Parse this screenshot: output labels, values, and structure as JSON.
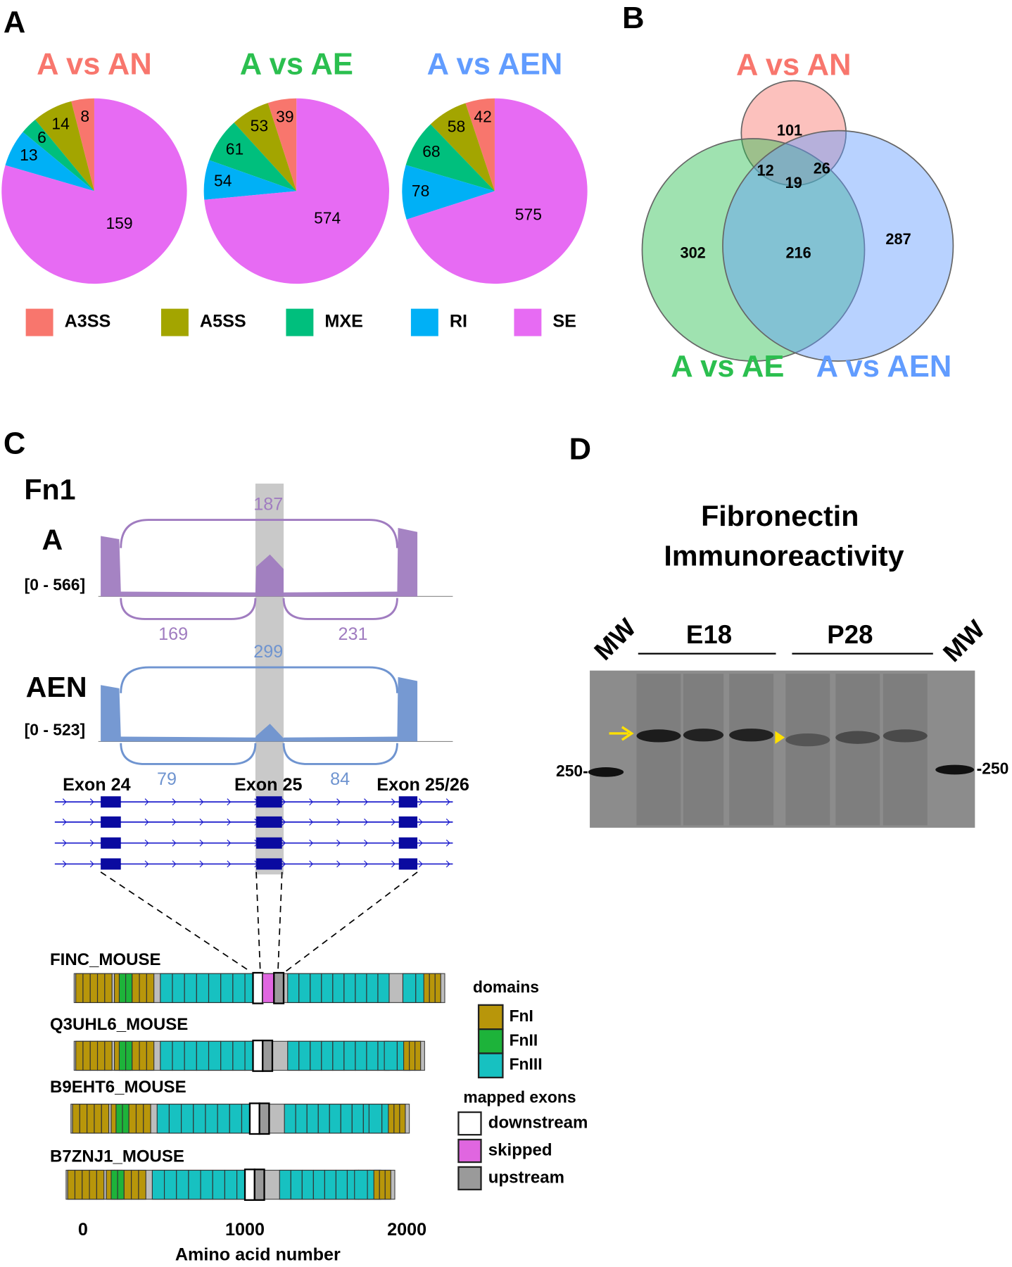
{
  "panels": [
    "A",
    "B",
    "C",
    "D"
  ],
  "chart_data": [
    {
      "type": "pie",
      "title": "A vs AN",
      "title_color": "#f8766d",
      "categories": [
        "A3SS",
        "A5SS",
        "MXE",
        "RI",
        "SE"
      ],
      "colors": [
        "#f8766d",
        "#a3a500",
        "#00bf7d",
        "#00b0f6",
        "#e76bf3"
      ],
      "values": [
        8,
        14,
        6,
        13,
        159
      ]
    },
    {
      "type": "pie",
      "title": "A vs AE",
      "title_color": "#2bbf4f",
      "categories": [
        "A3SS",
        "A5SS",
        "MXE",
        "RI",
        "SE"
      ],
      "colors": [
        "#f8766d",
        "#a3a500",
        "#00bf7d",
        "#00b0f6",
        "#e76bf3"
      ],
      "values": [
        39,
        53,
        61,
        54,
        574
      ]
    },
    {
      "type": "pie",
      "title": "A vs AEN",
      "title_color": "#619cff",
      "categories": [
        "A3SS",
        "A5SS",
        "MXE",
        "RI",
        "SE"
      ],
      "colors": [
        "#f8766d",
        "#a3a500",
        "#00bf7d",
        "#00b0f6",
        "#e76bf3"
      ],
      "values": [
        42,
        58,
        68,
        78,
        575
      ]
    },
    {
      "type": "venn",
      "sets": [
        {
          "name": "A vs AN",
          "color": "#f8766d"
        },
        {
          "name": "A vs AE",
          "color": "#2bbf4f"
        },
        {
          "name": "A vs AEN",
          "color": "#619cff"
        }
      ],
      "regions": [
        {
          "sets": [
            0
          ],
          "value": 101
        },
        {
          "sets": [
            0,
            1
          ],
          "value": 12
        },
        {
          "sets": [
            0,
            2
          ],
          "value": 26
        },
        {
          "sets": [
            0,
            1,
            2
          ],
          "value": 19
        },
        {
          "sets": [
            1
          ],
          "value": 302
        },
        {
          "sets": [
            1,
            2
          ],
          "value": 216
        },
        {
          "sets": [
            2
          ],
          "value": 287
        }
      ]
    }
  ],
  "sashimi": {
    "gene": "Fn1",
    "tracks": [
      {
        "name": "A",
        "range": "[0 - 566]",
        "color": "#a07cc0",
        "junctions": [
          187,
          169,
          231
        ]
      },
      {
        "name": "AEN",
        "range": "[0 - 523]",
        "color": "#6f94d0",
        "junctions": [
          299,
          79,
          84
        ]
      }
    ],
    "exons": [
      "Exon 24",
      "Exon 25",
      "Exon 25/26"
    ]
  },
  "proteins": {
    "names": [
      "FINC_MOUSE",
      "Q3UHL6_MOUSE",
      "B9EHT6_MOUSE",
      "B7ZNJ1_MOUSE"
    ],
    "xlim": [
      0,
      2000
    ],
    "xticks": [
      0,
      1000,
      2000
    ],
    "xlabel": "Amino acid number",
    "domains_title": "domains",
    "domains": [
      "FnI",
      "FnII",
      "FnIII"
    ],
    "exons_title": "mapped exons",
    "exons": [
      "downstream",
      "skipped",
      "upstream"
    ]
  },
  "blot": {
    "title": [
      "Fibronectin",
      "Immunoreactivity"
    ],
    "lanes": [
      "MW",
      "E18",
      "P28",
      "MW"
    ],
    "marker_left": "250-",
    "marker_right": "-250"
  }
}
